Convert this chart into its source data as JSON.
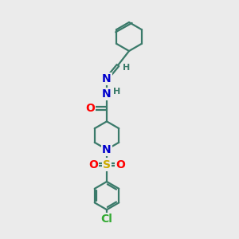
{
  "bg_color": "#ebebeb",
  "bond_color": "#3a7a6a",
  "bond_width": 1.6,
  "atom_colors": {
    "N": "#0000cc",
    "O": "#ff0000",
    "S": "#ccaa00",
    "Cl": "#33aa33",
    "C": "#3a7a6a",
    "H": "#3a7a6a"
  },
  "font_size": 10,
  "small_font": 8,
  "xlim": [
    0,
    10
  ],
  "ylim": [
    0,
    15
  ]
}
